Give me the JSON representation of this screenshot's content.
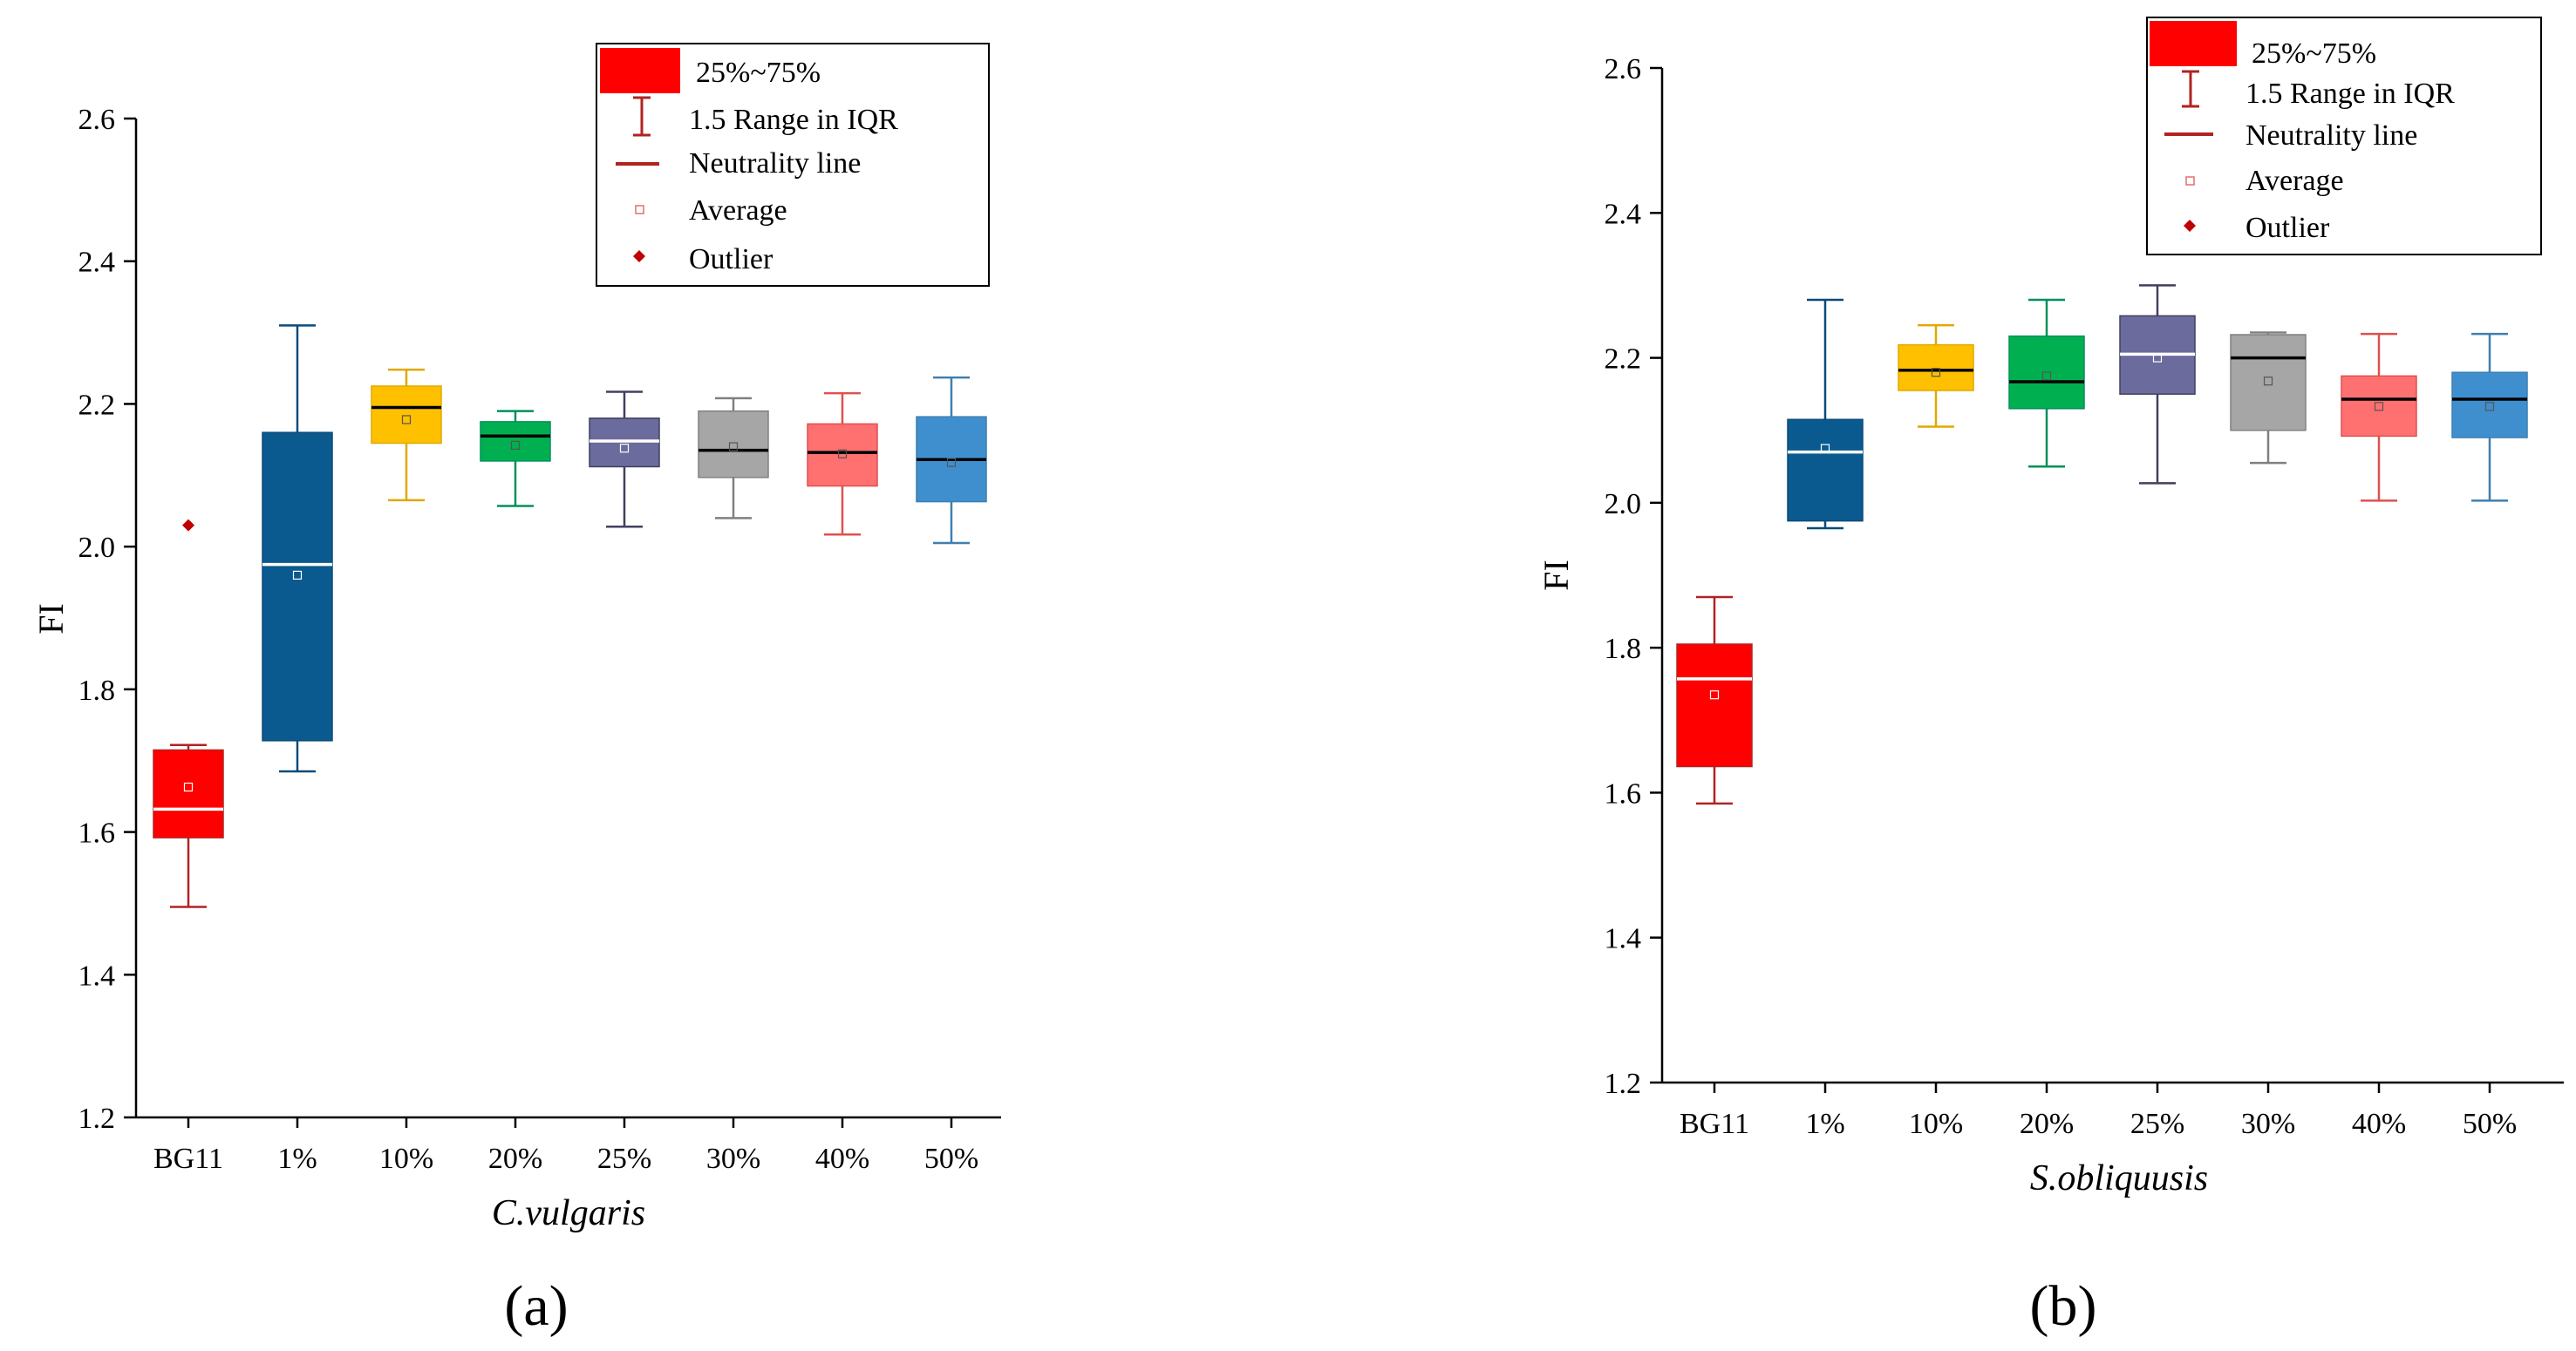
{
  "chart_data": [
    {
      "type": "box",
      "panel_label": "(a)",
      "xlabel": "C.vulgaris",
      "ylabel": "FI",
      "ylim": [
        1.2,
        2.6
      ],
      "yticks": [
        "1.2",
        "1.4",
        "1.6",
        "1.8",
        "2.0",
        "2.2",
        "2.4",
        "2.6"
      ],
      "categories": [
        "BG11",
        "1%",
        "10%",
        "20%",
        "25%",
        "30%",
        "40%",
        "50%"
      ],
      "boxes": [
        {
          "name": "BG11",
          "color": "#ff0000",
          "median_color": "#ffffff",
          "whisker_color": "#b22222",
          "whisker_low": 1.495,
          "q1": 1.592,
          "median": 1.632,
          "q3": 1.715,
          "whisker_high": 1.722,
          "mean": 1.663,
          "outliers": [
            2.03
          ]
        },
        {
          "name": "1%",
          "color": "#0a5a8f",
          "median_color": "#ffffff",
          "whisker_color": "#0a4a7a",
          "whisker_low": 1.685,
          "q1": 1.728,
          "median": 1.975,
          "q3": 2.16,
          "whisker_high": 2.31,
          "mean": 1.96,
          "outliers": []
        },
        {
          "name": "10%",
          "color": "#ffc000",
          "median_color": "#000000",
          "whisker_color": "#e0a800",
          "whisker_low": 2.065,
          "q1": 2.145,
          "median": 2.195,
          "q3": 2.225,
          "whisker_high": 2.248,
          "mean": 2.178,
          "outliers": []
        },
        {
          "name": "20%",
          "color": "#00b050",
          "median_color": "#000000",
          "whisker_color": "#00905a",
          "whisker_low": 2.057,
          "q1": 2.12,
          "median": 2.155,
          "q3": 2.175,
          "whisker_high": 2.19,
          "mean": 2.142,
          "outliers": []
        },
        {
          "name": "25%",
          "color": "#6b6b9e",
          "median_color": "#ffffff",
          "whisker_color": "#404060",
          "whisker_low": 2.028,
          "q1": 2.112,
          "median": 2.148,
          "q3": 2.18,
          "whisker_high": 2.217,
          "mean": 2.138,
          "outliers": []
        },
        {
          "name": "30%",
          "color": "#a6a6a6",
          "median_color": "#000000",
          "whisker_color": "#808080",
          "whisker_low": 2.04,
          "q1": 2.097,
          "median": 2.135,
          "q3": 2.19,
          "whisker_high": 2.208,
          "mean": 2.14,
          "outliers": []
        },
        {
          "name": "40%",
          "color": "#ff7070",
          "median_color": "#000000",
          "whisker_color": "#e05050",
          "whisker_low": 2.017,
          "q1": 2.085,
          "median": 2.132,
          "q3": 2.172,
          "whisker_high": 2.215,
          "mean": 2.13,
          "outliers": []
        },
        {
          "name": "50%",
          "color": "#3f8fcf",
          "median_color": "#000000",
          "whisker_color": "#3f7faf",
          "whisker_low": 2.005,
          "q1": 2.063,
          "median": 2.122,
          "q3": 2.182,
          "whisker_high": 2.237,
          "mean": 2.118,
          "outliers": []
        }
      ]
    },
    {
      "type": "box",
      "panel_label": "(b)",
      "xlabel": "S.obliquusis",
      "ylabel": "FI",
      "ylim": [
        1.2,
        2.6
      ],
      "yticks": [
        "1.2",
        "1.4",
        "1.6",
        "1.8",
        "2.0",
        "2.2",
        "2.4",
        "2.6"
      ],
      "categories": [
        "BG11",
        "1%",
        "10%",
        "20%",
        "25%",
        "30%",
        "40%",
        "50%"
      ],
      "boxes": [
        {
          "name": "BG11",
          "color": "#ff0000",
          "median_color": "#ffffff",
          "whisker_color": "#b22222",
          "whisker_low": 1.585,
          "q1": 1.636,
          "median": 1.757,
          "q3": 1.805,
          "whisker_high": 1.87,
          "mean": 1.735,
          "outliers": []
        },
        {
          "name": "1%",
          "color": "#0a5a8f",
          "median_color": "#ffffff",
          "whisker_color": "#0a4a7a",
          "whisker_low": 1.965,
          "q1": 1.975,
          "median": 2.07,
          "q3": 2.115,
          "whisker_high": 2.28,
          "mean": 2.075,
          "outliers": []
        },
        {
          "name": "10%",
          "color": "#ffc000",
          "median_color": "#000000",
          "whisker_color": "#e0a800",
          "whisker_low": 2.105,
          "q1": 2.155,
          "median": 2.183,
          "q3": 2.218,
          "whisker_high": 2.245,
          "mean": 2.18,
          "outliers": []
        },
        {
          "name": "20%",
          "color": "#00b050",
          "median_color": "#000000",
          "whisker_color": "#00905a",
          "whisker_low": 2.05,
          "q1": 2.13,
          "median": 2.167,
          "q3": 2.23,
          "whisker_high": 2.28,
          "mean": 2.175,
          "outliers": []
        },
        {
          "name": "25%",
          "color": "#6b6b9e",
          "median_color": "#ffffff",
          "whisker_color": "#404060",
          "whisker_low": 2.027,
          "q1": 2.15,
          "median": 2.205,
          "q3": 2.258,
          "whisker_high": 2.3,
          "mean": 2.2,
          "outliers": []
        },
        {
          "name": "30%",
          "color": "#a6a6a6",
          "median_color": "#000000",
          "whisker_color": "#808080",
          "whisker_low": 2.055,
          "q1": 2.1,
          "median": 2.2,
          "q3": 2.232,
          "whisker_high": 2.235,
          "mean": 2.168,
          "outliers": []
        },
        {
          "name": "40%",
          "color": "#ff7070",
          "median_color": "#000000",
          "whisker_color": "#e05050",
          "whisker_low": 2.003,
          "q1": 2.092,
          "median": 2.143,
          "q3": 2.175,
          "whisker_high": 2.233,
          "mean": 2.133,
          "outliers": []
        },
        {
          "name": "50%",
          "color": "#3f8fcf",
          "median_color": "#000000",
          "whisker_color": "#3f7faf",
          "whisker_low": 2.003,
          "q1": 2.09,
          "median": 2.143,
          "q3": 2.18,
          "whisker_high": 2.233,
          "mean": 2.133,
          "outliers": []
        }
      ]
    }
  ],
  "legend": {
    "items": [
      "25%~75%",
      "1.5 Range in IQR",
      "Neutrality line",
      "Average",
      "Outlier"
    ],
    "box_color": "#ff0000",
    "line_color": "#b22222",
    "average_color": "#e07070",
    "outlier_color": "#c00000"
  }
}
